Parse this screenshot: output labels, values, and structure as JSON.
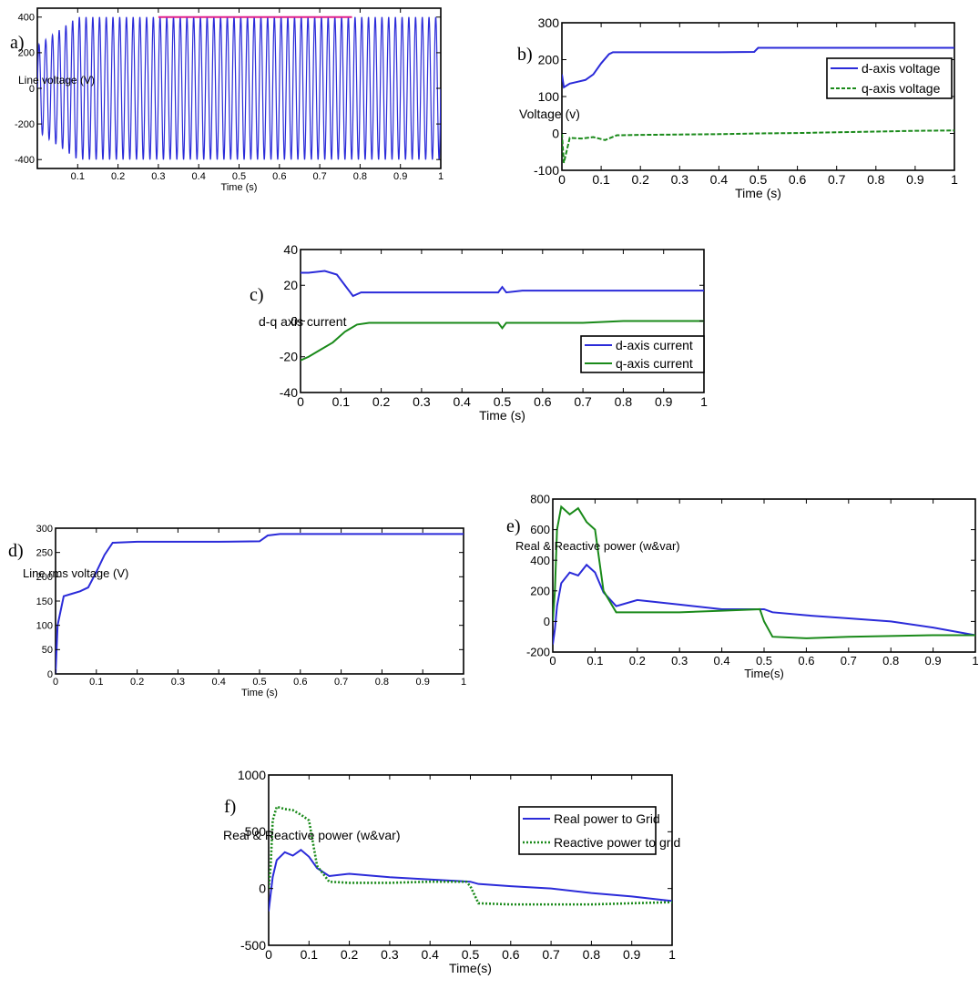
{
  "chart_data": [
    {
      "id": "a",
      "type": "line",
      "panel_label": "a)",
      "title": "",
      "xlabel": "Time (s)",
      "ylabel": "Line voltage (V)",
      "xlim": [
        0,
        1
      ],
      "ylim": [
        -450,
        450
      ],
      "xticks": [
        "0.1",
        "0.2",
        "0.3",
        "0.4",
        "0.5",
        "0.6",
        "0.7",
        "0.8",
        "0.9",
        "1"
      ],
      "yticks": [
        "400",
        "200",
        "0",
        "-200",
        "-400"
      ],
      "grid": false,
      "series": [
        {
          "color": "#2b2bd9",
          "waveform": "sine",
          "frequency_hz": 60,
          "amplitude_start": 240,
          "amplitude_ramp_end_s": 0.1,
          "amplitude_steady": 400
        },
        {
          "color": "#e0208a",
          "style": "line",
          "x": [
            0.3,
            0.78
          ],
          "y": [
            400,
            400
          ]
        }
      ]
    },
    {
      "id": "b",
      "type": "line",
      "panel_label": "b)",
      "title": "",
      "xlabel": "Time (s)",
      "ylabel": "Voltage (v)",
      "xlim": [
        0,
        1
      ],
      "ylim": [
        -100,
        300
      ],
      "xticks": [
        "0",
        "0.1",
        "0.2",
        "0.3",
        "0.4",
        "0.5",
        "0.6",
        "0.7",
        "0.8",
        "0.9",
        "1"
      ],
      "yticks": [
        "300",
        "200",
        "100",
        "0",
        "-100"
      ],
      "grid": false,
      "legend": "top-right",
      "series": [
        {
          "name": "d-axis voltage",
          "color": "#2b2bd9",
          "style": "solid",
          "x": [
            0,
            0.005,
            0.02,
            0.04,
            0.06,
            0.08,
            0.1,
            0.12,
            0.13,
            0.2,
            0.3,
            0.4,
            0.49,
            0.5,
            0.6,
            0.7,
            0.8,
            0.9,
            1.0
          ],
          "y": [
            160,
            125,
            135,
            140,
            145,
            160,
            190,
            215,
            220,
            220,
            220,
            220,
            221,
            232,
            232,
            232,
            232,
            232,
            232
          ]
        },
        {
          "name": "q-axis voltage",
          "color": "#1a8a1a",
          "style": "dashed",
          "x": [
            0,
            0.005,
            0.02,
            0.05,
            0.08,
            0.11,
            0.14,
            0.2,
            0.3,
            0.4,
            0.5,
            0.6,
            0.7,
            0.8,
            0.9,
            1.0
          ],
          "y": [
            0,
            -80,
            -12,
            -14,
            -10,
            -18,
            -5,
            -4,
            -3,
            -2,
            0,
            1,
            3,
            5,
            7,
            8
          ]
        }
      ]
    },
    {
      "id": "c",
      "type": "line",
      "panel_label": "c)",
      "title": "",
      "xlabel": "Time (s)",
      "ylabel": "d-q axis   current",
      "xlim": [
        0,
        1
      ],
      "ylim": [
        -40,
        40
      ],
      "xticks": [
        "0",
        "0.1",
        "0.2",
        "0.3",
        "0.4",
        "0.5",
        "0.6",
        "0.7",
        "0.8",
        "0.9",
        "1"
      ],
      "yticks": [
        "40",
        "20",
        "0",
        "-20",
        "-40"
      ],
      "grid": false,
      "legend": "center-right",
      "series": [
        {
          "name": "d-axis current",
          "color": "#2b2bd9",
          "style": "solid",
          "x": [
            0,
            0.02,
            0.06,
            0.09,
            0.11,
            0.13,
            0.15,
            0.2,
            0.3,
            0.4,
            0.49,
            0.5,
            0.51,
            0.55,
            0.6,
            0.7,
            0.8,
            0.9,
            1.0
          ],
          "y": [
            27,
            27,
            28,
            26,
            20,
            14,
            16,
            16,
            16,
            16,
            16,
            19,
            16,
            17,
            17,
            17,
            17,
            17,
            17
          ]
        },
        {
          "name": "q-axis current",
          "color": "#1a8a1a",
          "style": "solid",
          "x": [
            0,
            0.02,
            0.05,
            0.08,
            0.11,
            0.14,
            0.17,
            0.2,
            0.3,
            0.4,
            0.49,
            0.5,
            0.51,
            0.6,
            0.7,
            0.8,
            0.9,
            1.0
          ],
          "y": [
            -22,
            -20,
            -16,
            -12,
            -6,
            -2,
            -1,
            -1,
            -1,
            -1,
            -1,
            -4,
            -1,
            -1,
            -1,
            0,
            0,
            0
          ]
        }
      ]
    },
    {
      "id": "d",
      "type": "line",
      "panel_label": "d)",
      "title": "",
      "xlabel": "Time (s)",
      "ylabel": "Line rms voltage (V)",
      "xlim": [
        0,
        1
      ],
      "ylim": [
        0,
        300
      ],
      "xticks": [
        "0",
        "0.1",
        "0.2",
        "0.3",
        "0.4",
        "0.5",
        "0.6",
        "0.7",
        "0.8",
        "0.9",
        "1"
      ],
      "yticks": [
        "300",
        "250",
        "200",
        "150",
        "100",
        "50",
        "0"
      ],
      "grid": false,
      "series": [
        {
          "color": "#2b2bd9",
          "style": "solid",
          "x": [
            0,
            0.005,
            0.01,
            0.02,
            0.04,
            0.06,
            0.08,
            0.1,
            0.12,
            0.14,
            0.2,
            0.3,
            0.4,
            0.5,
            0.52,
            0.55,
            0.6,
            0.7,
            0.8,
            0.9,
            1.0
          ],
          "y": [
            0,
            100,
            120,
            160,
            165,
            170,
            178,
            210,
            245,
            270,
            272,
            272,
            272,
            273,
            285,
            288,
            288,
            288,
            288,
            288,
            288
          ]
        }
      ]
    },
    {
      "id": "e",
      "type": "line",
      "panel_label": "e)",
      "title": "",
      "xlabel": "Time(s)",
      "ylabel": "Real & Reactive  power  (w&var)",
      "xlim": [
        0,
        1
      ],
      "ylim": [
        -200,
        800
      ],
      "xticks": [
        "0",
        "0.1",
        "0.2",
        "0.3",
        "0.4",
        "0.5",
        "0.6",
        "0.7",
        "0.8",
        "0.9",
        "1"
      ],
      "yticks": [
        "800",
        "600",
        "400",
        "200",
        "0",
        "-200"
      ],
      "grid": false,
      "series": [
        {
          "color": "#2b2bd9",
          "style": "solid",
          "x": [
            0,
            0.005,
            0.01,
            0.02,
            0.04,
            0.06,
            0.08,
            0.1,
            0.12,
            0.15,
            0.2,
            0.3,
            0.4,
            0.5,
            0.52,
            0.6,
            0.7,
            0.8,
            0.9,
            1.0
          ],
          "y": [
            -150,
            -50,
            100,
            250,
            320,
            300,
            370,
            320,
            190,
            100,
            140,
            110,
            80,
            80,
            60,
            40,
            20,
            0,
            -40,
            -90
          ]
        },
        {
          "color": "#1a8a1a",
          "style": "solid",
          "x": [
            0,
            0.005,
            0.01,
            0.02,
            0.04,
            0.06,
            0.08,
            0.1,
            0.12,
            0.15,
            0.2,
            0.3,
            0.4,
            0.49,
            0.5,
            0.52,
            0.6,
            0.7,
            0.8,
            0.9,
            1.0
          ],
          "y": [
            0,
            200,
            600,
            750,
            700,
            740,
            650,
            600,
            200,
            60,
            60,
            60,
            70,
            80,
            0,
            -100,
            -110,
            -100,
            -95,
            -90,
            -90
          ]
        }
      ]
    },
    {
      "id": "f",
      "type": "line",
      "panel_label": "f)",
      "title": "",
      "xlabel": "Time(s)",
      "ylabel": "Real & Reactive  power  (w&var)",
      "xlim": [
        0,
        1
      ],
      "ylim": [
        -500,
        1000
      ],
      "xticks": [
        "0",
        "0.1",
        "0.2",
        "0.3",
        "0.4",
        "0.5",
        "0.6",
        "0.7",
        "0.8",
        "0.9",
        "1"
      ],
      "yticks": [
        "1000",
        "500",
        "0",
        "-500"
      ],
      "grid": false,
      "legend": "top-right",
      "series": [
        {
          "name": "Real power to Grid",
          "color": "#2b2bd9",
          "style": "solid",
          "x": [
            0,
            0.005,
            0.01,
            0.02,
            0.04,
            0.06,
            0.08,
            0.1,
            0.12,
            0.15,
            0.2,
            0.3,
            0.4,
            0.5,
            0.52,
            0.6,
            0.7,
            0.8,
            0.9,
            1.0
          ],
          "y": [
            -200,
            -50,
            100,
            250,
            320,
            290,
            340,
            280,
            180,
            110,
            130,
            100,
            80,
            60,
            40,
            20,
            0,
            -40,
            -70,
            -110
          ]
        },
        {
          "name": "Reactive power to grid",
          "color": "#1a8a1a",
          "style": "dotted",
          "x": [
            0,
            0.005,
            0.01,
            0.02,
            0.04,
            0.06,
            0.08,
            0.1,
            0.12,
            0.15,
            0.2,
            0.3,
            0.4,
            0.49,
            0.5,
            0.52,
            0.6,
            0.7,
            0.8,
            0.9,
            1.0
          ],
          "y": [
            0,
            200,
            600,
            720,
            700,
            690,
            650,
            600,
            200,
            60,
            50,
            50,
            60,
            60,
            20,
            -130,
            -140,
            -140,
            -140,
            -130,
            -120
          ]
        }
      ]
    }
  ]
}
